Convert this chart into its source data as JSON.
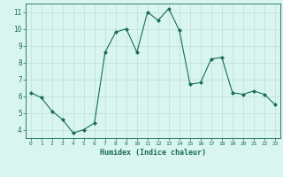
{
  "x": [
    0,
    1,
    2,
    3,
    4,
    5,
    6,
    7,
    8,
    9,
    10,
    11,
    12,
    13,
    14,
    15,
    16,
    17,
    18,
    19,
    20,
    21,
    22,
    23
  ],
  "y": [
    6.2,
    5.9,
    5.1,
    4.6,
    3.8,
    4.0,
    4.4,
    8.6,
    9.8,
    10.0,
    8.6,
    11.0,
    10.5,
    11.2,
    9.9,
    6.7,
    6.8,
    8.2,
    8.3,
    6.2,
    6.1,
    6.3,
    6.1,
    5.5
  ],
  "line_color": "#1a6b5a",
  "marker": "D",
  "marker_size": 2,
  "bg_color": "#d8f5f0",
  "grid_color": "#c0ddd8",
  "xlabel": "Humidex (Indice chaleur)",
  "xlim": [
    -0.5,
    23.5
  ],
  "ylim": [
    3.5,
    11.5
  ],
  "yticks": [
    4,
    5,
    6,
    7,
    8,
    9,
    10,
    11
  ],
  "xticks": [
    0,
    1,
    2,
    3,
    4,
    5,
    6,
    7,
    8,
    9,
    10,
    11,
    12,
    13,
    14,
    15,
    16,
    17,
    18,
    19,
    20,
    21,
    22,
    23
  ],
  "tick_color": "#1a6b5a",
  "label_color": "#1a6b5a",
  "spine_color": "#1a6b5a"
}
